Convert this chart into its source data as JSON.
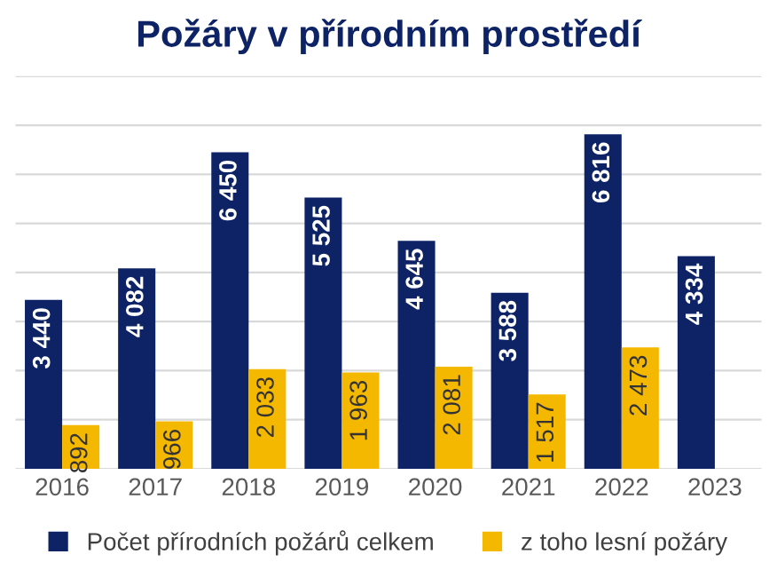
{
  "chart_data": {
    "type": "bar",
    "title": "Požáry v přírodním prostředí",
    "categories": [
      "2016",
      "2017",
      "2018",
      "2019",
      "2020",
      "2021",
      "2022",
      "2023"
    ],
    "series": [
      {
        "name": "Počet přírodních požárů celkem",
        "color": "#0d2366",
        "values": [
          3440,
          4082,
          6450,
          5525,
          4645,
          3588,
          6816,
          4334
        ],
        "value_labels": [
          "3 440",
          "4 082",
          "6 450",
          "5 525",
          "4 645",
          "3 588",
          "6 816",
          "4 334"
        ]
      },
      {
        "name": "z toho lesní požáry",
        "color": "#f5b800",
        "values": [
          892,
          966,
          2033,
          1963,
          2081,
          1517,
          2473,
          null
        ],
        "value_labels": [
          "892",
          "966",
          "2 033",
          "1 963",
          "2 081",
          "1 517",
          "2 473",
          null
        ]
      }
    ],
    "ylim": [
      0,
      8000
    ],
    "yticks": [
      {
        "value": 0,
        "label": null
      },
      {
        "value": 1000,
        "label": null
      },
      {
        "value": 2000,
        "label": null
      },
      {
        "value": 3000,
        "label": null
      },
      {
        "value": 4000,
        "label": null
      },
      {
        "value": 5000,
        "label": null
      },
      {
        "value": 6000,
        "label": null
      },
      {
        "value": 7000,
        "label": null
      },
      {
        "value": 8000,
        "label": null
      }
    ],
    "tick_labels": "x",
    "grid": "y",
    "legend": "bottom"
  }
}
